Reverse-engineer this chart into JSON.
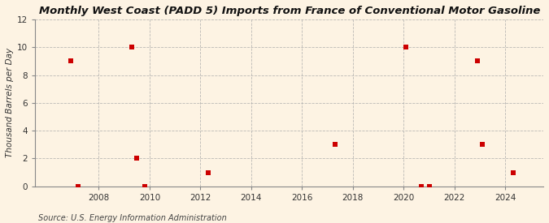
{
  "title": "Monthly West Coast (PADD 5) Imports from France of Conventional Motor Gasoline",
  "ylabel": "Thousand Barrels per Day",
  "source": "Source: U.S. Energy Information Administration",
  "background_color": "#fdf3e3",
  "plot_bg_color": "#fdf3e3",
  "data_points": [
    [
      2006.9,
      9
    ],
    [
      2007.2,
      0
    ],
    [
      2009.3,
      10
    ],
    [
      2009.5,
      2
    ],
    [
      2009.8,
      0
    ],
    [
      2012.3,
      1
    ],
    [
      2017.3,
      3
    ],
    [
      2020.1,
      10
    ],
    [
      2020.7,
      0
    ],
    [
      2021.0,
      0
    ],
    [
      2022.9,
      9
    ],
    [
      2023.1,
      3
    ],
    [
      2024.3,
      1
    ]
  ],
  "marker_color": "#cc0000",
  "marker_size": 18,
  "xlim": [
    2005.5,
    2025.5
  ],
  "ylim": [
    0,
    12
  ],
  "xticks": [
    2008,
    2010,
    2012,
    2014,
    2016,
    2018,
    2020,
    2022,
    2024
  ],
  "yticks": [
    0,
    2,
    4,
    6,
    8,
    10,
    12
  ],
  "grid_color": "#aaaaaa",
  "grid_style": "--",
  "grid_alpha": 0.8,
  "title_fontsize": 9.5,
  "label_fontsize": 7.5,
  "tick_fontsize": 7.5,
  "source_fontsize": 7
}
